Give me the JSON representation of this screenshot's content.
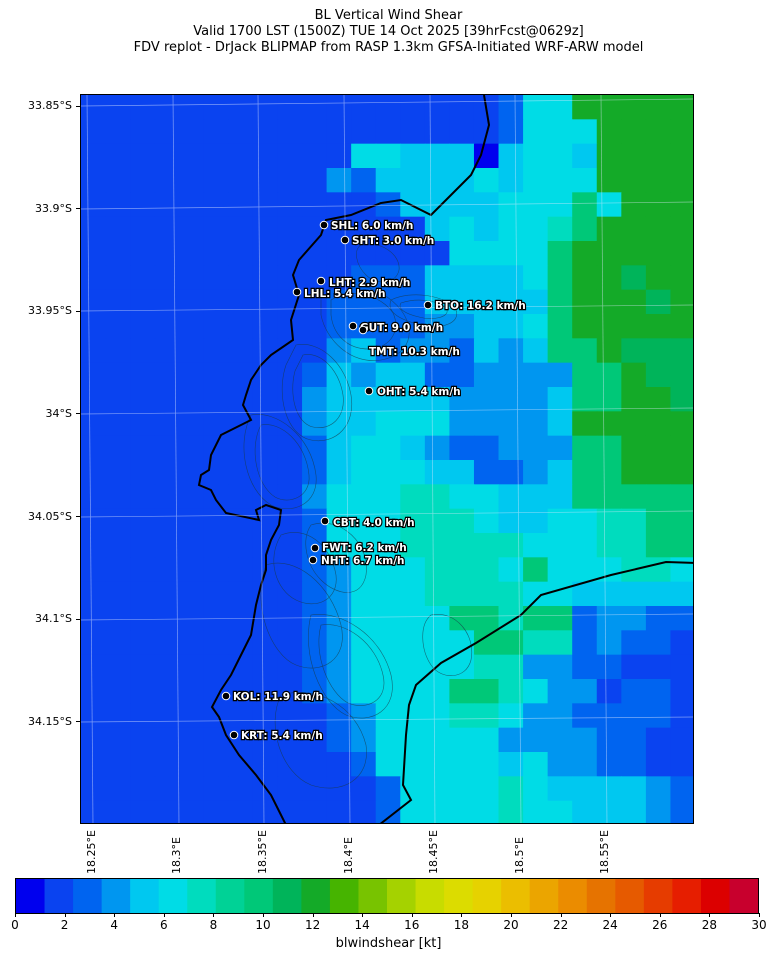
{
  "title": {
    "line1": "BL Vertical Wind Shear",
    "line2": "Valid 1700 LST (1500Z) TUE 14 Oct 2025 [39hrFcst@0629z]",
    "line3": "FDV replot - DrJack BLIPMAP from RASP 1.3km GFSA-Initiated WRF-ARW model"
  },
  "axes": {
    "lat_labels": [
      "33.85°S",
      "33.9°S",
      "33.95°S",
      "34°S",
      "34.05°S",
      "34.1°S",
      "34.15°S"
    ],
    "lon_labels": [
      "18.25°E",
      "18.3°E",
      "18.35°E",
      "18.4°E",
      "18.45°E",
      "18.5°E",
      "18.55°E"
    ]
  },
  "stations": [
    {
      "code": "SHL",
      "text": "SHL: 6.0 km/h"
    },
    {
      "code": "SHT",
      "text": "SHT: 3.0 km/h"
    },
    {
      "code": "LHT",
      "text": "LHT: 2.9 km/h"
    },
    {
      "code": "LHL",
      "text": "LHL: 5.4 km/h"
    },
    {
      "code": "BTO",
      "text": "BTO: 16.2 km/h"
    },
    {
      "code": "GUT",
      "text": "GUT: 9.0 km/h"
    },
    {
      "code": "TMT",
      "text": "TMT: 10.3 km/h"
    },
    {
      "code": "OHT",
      "text": "OHT: 5.4 km/h"
    },
    {
      "code": "CBT",
      "text": "CBT: 4.0 km/h"
    },
    {
      "code": "FWT",
      "text": "FWT: 6.2 km/h"
    },
    {
      "code": "NHT",
      "text": "NHT: 6.7 km/h"
    },
    {
      "code": "KOL",
      "text": "KOL: 11.9 km/h"
    },
    {
      "code": "KRT",
      "text": "KRT: 5.4 km/h"
    }
  ],
  "colorbar": {
    "title": "blwindshear [kt]",
    "tick_labels": [
      "0",
      "2",
      "4",
      "6",
      "8",
      "10",
      "12",
      "14",
      "16",
      "18",
      "20",
      "22",
      "24",
      "26",
      "28",
      "30"
    ],
    "colors": [
      "#0000ee",
      "#0a43f0",
      "#0064f0",
      "#0096f0",
      "#00c8f0",
      "#00dce6",
      "#00dcbe",
      "#00d296",
      "#00c878",
      "#00b45a",
      "#14aa28",
      "#46b400",
      "#78c300",
      "#a5d200",
      "#c8dc00",
      "#dcdc00",
      "#e6d200",
      "#ebbe00",
      "#eba500",
      "#eb8c00",
      "#e67300",
      "#e65a00",
      "#e63c00",
      "#e61e00",
      "#dc0000",
      "#c8002d"
    ]
  }
}
